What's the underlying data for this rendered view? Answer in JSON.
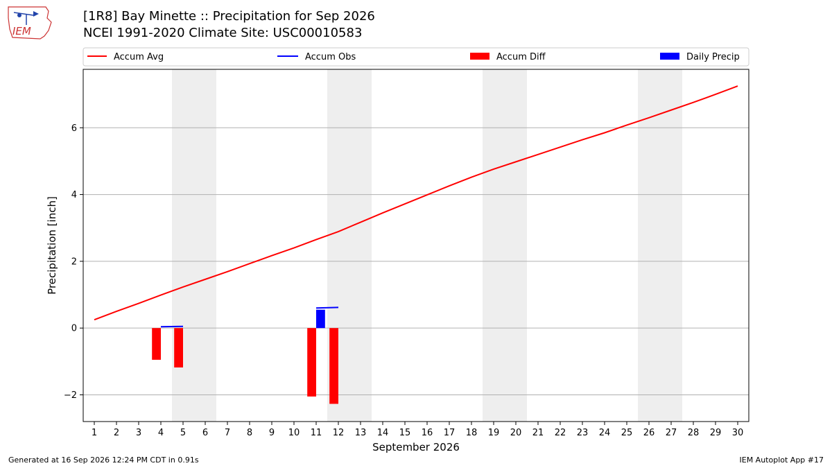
{
  "header": {
    "logo_text": "IEM",
    "title_line1": "[1R8] Bay Minette :: Precipitation for Sep 2026",
    "title_line2": "NCEI 1991-2020 Climate Site: USC00010583"
  },
  "footer": {
    "generated": "Generated at 16 Sep 2026 12:24 PM CDT in 0.91s",
    "app": "IEM Autoplot App #17"
  },
  "colors": {
    "avg": "#ff0000",
    "obs": "#0000ff",
    "diff": "#ff0000",
    "daily": "#0000ff",
    "weekend": "#eeeeee",
    "grid": "#b0b0b0"
  },
  "chart_data": {
    "type": "bar",
    "xlabel": "September 2026",
    "ylabel": "Precipitation [inch]",
    "xlim": [
      0.5,
      30.5
    ],
    "ylim": [
      -2.8,
      7.75
    ],
    "yticks": [
      -2,
      0,
      2,
      4,
      6
    ],
    "ytick_labels": [
      "−2",
      "0",
      "2",
      "4",
      "6"
    ],
    "x": [
      1,
      2,
      3,
      4,
      5,
      6,
      7,
      8,
      9,
      10,
      11,
      12,
      13,
      14,
      15,
      16,
      17,
      18,
      19,
      20,
      21,
      22,
      23,
      24,
      25,
      26,
      27,
      28,
      29,
      30
    ],
    "shaded_days": [
      [
        5,
        6
      ],
      [
        12,
        13
      ],
      [
        19,
        20
      ],
      [
        26,
        27
      ]
    ],
    "grid": "y",
    "legend_placement": "top",
    "legend": [
      "Accum Avg",
      "Accum Obs",
      "Accum Diff",
      "Daily Precip"
    ],
    "series": [
      {
        "name": "Accum Avg",
        "kind": "line",
        "x": [
          1,
          2,
          3,
          4,
          5,
          6,
          7,
          8,
          9,
          10,
          11,
          12,
          13,
          14,
          15,
          16,
          17,
          18,
          19,
          20,
          21,
          22,
          23,
          24,
          25,
          26,
          27,
          28,
          29,
          30
        ],
        "values": [
          0.25,
          0.5,
          0.74,
          0.99,
          1.23,
          1.46,
          1.69,
          1.93,
          2.17,
          2.4,
          2.65,
          2.89,
          3.17,
          3.45,
          3.72,
          3.99,
          4.26,
          4.52,
          4.76,
          4.98,
          5.2,
          5.42,
          5.64,
          5.85,
          6.08,
          6.3,
          6.53,
          6.76,
          7.0,
          7.25
        ]
      },
      {
        "name": "Accum Obs",
        "kind": "step",
        "x": [
          4,
          5,
          11,
          12
        ],
        "values": [
          0.04,
          0.05,
          0.6,
          0.62
        ]
      },
      {
        "name": "Accum Diff",
        "kind": "bar",
        "x": [
          4,
          5,
          11,
          12
        ],
        "values": [
          -0.95,
          -1.18,
          -2.05,
          -2.27
        ]
      },
      {
        "name": "Daily Precip",
        "kind": "bar",
        "x": [
          11
        ],
        "values": [
          0.55
        ]
      }
    ]
  }
}
